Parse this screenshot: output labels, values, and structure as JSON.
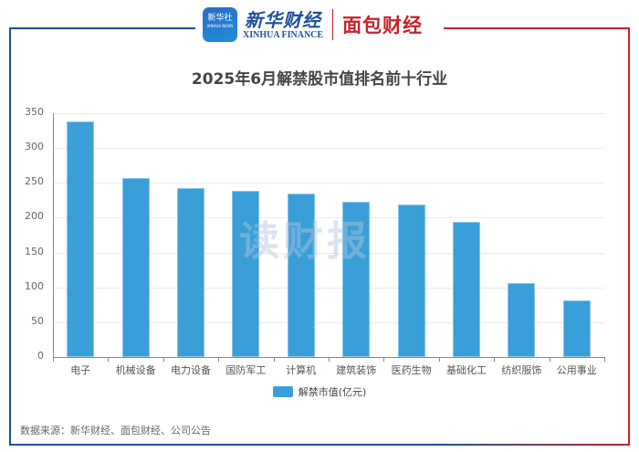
{
  "header": {
    "logo_xinhua_icon_text": "新华社",
    "logo_xinhua_icon_sub": "XINHUA NEWS",
    "logo_xinhua_cn": "新华财经",
    "logo_xinhua_en": "XINHUA FINANCE",
    "logo_mianbao": "面包财经"
  },
  "watermark": "读财报",
  "source": "数据来源：新华财经、面包财经、公司公告",
  "colors": {
    "bar": "#3a9fd8",
    "frame_left": "#1f4e9c",
    "frame_right": "#c8222a"
  },
  "chart_data": {
    "type": "bar",
    "title": "2025年6月解禁股市值排名前十行业",
    "xlabel": "",
    "ylabel": "",
    "categories": [
      "电子",
      "机械设备",
      "电力设备",
      "国防军工",
      "计算机",
      "建筑装饰",
      "医药生物",
      "基础化工",
      "纺织服饰",
      "公用事业"
    ],
    "series": [
      {
        "name": "解禁市值(亿元)",
        "values": [
          338,
          257,
          243,
          239,
          235,
          223,
          219,
          194,
          106,
          81
        ]
      }
    ],
    "yticks": [
      0,
      50,
      100,
      150,
      200,
      250,
      300,
      350
    ],
    "ylim": [
      0,
      350
    ],
    "grid": true,
    "legend_position": "bottom"
  }
}
